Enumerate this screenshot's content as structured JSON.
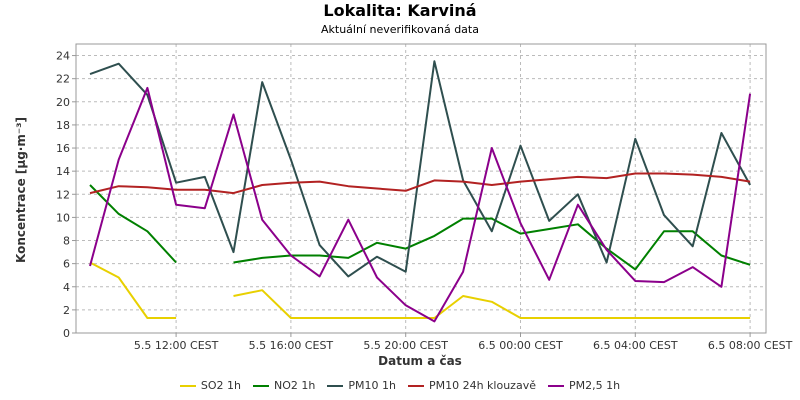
{
  "chart_data": {
    "type": "line",
    "title": "Lokalita: Karviná",
    "subtitle": "Aktuální neverifikovaná data",
    "xlabel": "Datum a čas",
    "ylabel": "Koncentrace [µg·m⁻³]",
    "ylim": [
      0,
      25
    ],
    "yticks": [
      0,
      2,
      4,
      6,
      8,
      10,
      12,
      14,
      16,
      18,
      20,
      22,
      24
    ],
    "x": [
      "5.5 09:00",
      "5.5 10:00",
      "5.5 11:00",
      "5.5 12:00",
      "5.5 13:00",
      "5.5 14:00",
      "5.5 15:00",
      "5.5 16:00",
      "5.5 17:00",
      "5.5 18:00",
      "5.5 19:00",
      "5.5 20:00",
      "5.5 21:00",
      "5.5 22:00",
      "5.5 23:00",
      "6.5 00:00",
      "6.5 01:00",
      "6.5 02:00",
      "6.5 03:00",
      "6.5 04:00",
      "6.5 05:00",
      "6.5 06:00",
      "6.5 07:00",
      "6.5 08:00"
    ],
    "xticks": [
      {
        "index": 3,
        "label": "5.5 12:00 CEST"
      },
      {
        "index": 7,
        "label": "5.5 16:00 CEST"
      },
      {
        "index": 11,
        "label": "5.5 20:00 CEST"
      },
      {
        "index": 15,
        "label": "6.5 00:00 CEST"
      },
      {
        "index": 19,
        "label": "6.5 04:00 CEST"
      },
      {
        "index": 23,
        "label": "6.5 08:00 CEST"
      }
    ],
    "grid": true,
    "legend_position": "bottom",
    "series": [
      {
        "name": "SO2 1h",
        "color": "#e8d000",
        "values": [
          6.1,
          4.8,
          1.3,
          1.3,
          null,
          3.2,
          3.7,
          1.3,
          1.3,
          1.3,
          1.3,
          1.3,
          1.3,
          3.2,
          2.7,
          1.3,
          1.3,
          1.3,
          1.3,
          1.3,
          1.3,
          1.3,
          1.3,
          1.3
        ]
      },
      {
        "name": "NO2 1h",
        "color": "#008000",
        "values": [
          12.8,
          10.3,
          8.8,
          6.1,
          null,
          6.1,
          6.5,
          6.7,
          6.7,
          6.5,
          7.8,
          7.3,
          8.4,
          9.9,
          9.9,
          8.6,
          9.0,
          9.4,
          7.3,
          5.5,
          8.8,
          8.8,
          6.7,
          5.9
        ]
      },
      {
        "name": "PM10 1h",
        "color": "#2f4f4f",
        "values": [
          22.4,
          23.3,
          20.6,
          13.0,
          13.5,
          7.0,
          21.7,
          15.0,
          7.6,
          4.9,
          6.6,
          5.3,
          23.5,
          13.2,
          8.8,
          16.2,
          9.7,
          12.0,
          6.1,
          16.8,
          10.2,
          7.5,
          17.3,
          12.8
        ]
      },
      {
        "name": "PM10 24h klouzavě",
        "color": "#b22222",
        "values": [
          12.1,
          12.7,
          12.6,
          12.4,
          12.4,
          12.1,
          12.8,
          13.0,
          13.1,
          12.7,
          12.5,
          12.3,
          13.2,
          13.1,
          12.8,
          13.1,
          13.3,
          13.5,
          13.4,
          13.8,
          13.8,
          13.7,
          13.5,
          13.1
        ]
      },
      {
        "name": "PM2,5 1h",
        "color": "#8b008b",
        "values": [
          5.8,
          15.0,
          21.2,
          11.1,
          10.8,
          18.9,
          9.8,
          6.7,
          4.9,
          9.8,
          4.8,
          2.4,
          1.0,
          5.3,
          16.0,
          9.5,
          4.6,
          11.1,
          7.2,
          4.5,
          4.4,
          5.7,
          4.0,
          20.7
        ]
      }
    ]
  }
}
